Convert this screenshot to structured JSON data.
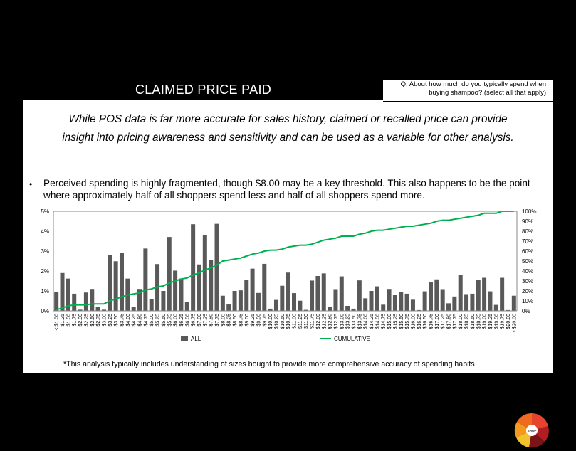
{
  "header": {
    "title": "CLAIMED PRICE PAID",
    "question_line1": "Q:  About how much do you typically spend when",
    "question_line2": "buying shampoo? (select all that apply)"
  },
  "subtitle_line1": "While POS data is far more accurate for sales history, claimed or recalled price can provide",
  "subtitle_line2": "insight into pricing awareness and sensitivity and can be used as a variable for other analysis.",
  "bullet": {
    "marker": "•",
    "line1": "Perceived spending is highly fragmented, though $8.00 may be a key threshold.  This also happens to be the point",
    "line2": "where approximately half of all shoppers spend less and half of all shoppers spend more."
  },
  "footnote": "*This analysis typically includes understanding of sizes bought to provide more comprehensive accuracy of spending habits",
  "logo_text": "SHOP",
  "colors": {
    "bars": "#595959",
    "cumulative": "#00B050",
    "grid": "#D9D9D9",
    "title_bg": "#000000"
  },
  "chart_data": {
    "type": "bar",
    "categories": [
      "< $1.00",
      "$1.25",
      "$1.50",
      "$1.75",
      "$2.00",
      "$2.25",
      "$2.50",
      "$2.75",
      "$3.00",
      "$3.25",
      "$3.50",
      "$3.75",
      "$4.00",
      "$4.25",
      "$4.50",
      "$4.75",
      "$5.00",
      "$5.25",
      "$5.50",
      "$5.75",
      "$6.00",
      "$6.25",
      "$6.50",
      "$6.75",
      "$7.00",
      "$7.25",
      "$7.50",
      "$7.75",
      "$8.00",
      "$8.25",
      "$8.50",
      "$8.75",
      "$9.00",
      "$9.25",
      "$9.50",
      "$9.75",
      "$10.00",
      "$10.25",
      "$10.50",
      "$10.75",
      "$11.00",
      "$11.25",
      "$11.50",
      "$11.75",
      "$12.00",
      "$12.25",
      "$12.50",
      "$12.75",
      "$13.00",
      "$13.25",
      "$13.50",
      "$13.75",
      "$14.00",
      "$14.25",
      "$14.50",
      "$14.75",
      "$15.00",
      "$15.25",
      "$15.50",
      "$15.75",
      "$16.00",
      "$16.25",
      "$16.50",
      "$16.75",
      "$17.00",
      "$17.25",
      "$17.50",
      "$17.75",
      "$18.00",
      "$18.25",
      "$18.50",
      "$18.75",
      "$19.00",
      "$19.25",
      "$19.50",
      "$19.75",
      "$20.00",
      "> $20.00"
    ],
    "series": [
      {
        "name": "ALL",
        "axis": "left",
        "values": [
          0.95,
          1.9,
          1.62,
          0.86,
          0.06,
          0.92,
          1.1,
          0.21,
          0.06,
          2.79,
          2.49,
          2.92,
          1.62,
          0.21,
          1.1,
          3.13,
          0.6,
          2.35,
          1.0,
          3.71,
          2.02,
          1.62,
          0.44,
          4.35,
          2.33,
          3.79,
          2.55,
          4.37,
          0.76,
          0.32,
          1.0,
          1.03,
          1.57,
          2.12,
          0.9,
          2.36,
          0.11,
          0.55,
          1.26,
          1.92,
          0.89,
          0.51,
          0.05,
          1.52,
          1.75,
          1.88,
          0.21,
          1.09,
          1.73,
          0.25,
          0.11,
          1.53,
          0.63,
          1.0,
          1.23,
          0.31,
          1.1,
          0.79,
          0.93,
          0.86,
          0.56,
          0.04,
          0.98,
          1.46,
          1.58,
          1.09,
          0.38,
          0.72,
          1.8,
          0.84,
          0.86,
          1.54,
          1.66,
          0.98,
          0.3,
          1.66,
          0.04,
          0.76
        ]
      },
      {
        "name": "CUMULATIVE",
        "axis": "right",
        "values": [
          1,
          3,
          5,
          6,
          6,
          6,
          7,
          7,
          7,
          10,
          12,
          14,
          16,
          17,
          18,
          21,
          22,
          24,
          25,
          28,
          30,
          32,
          33,
          36,
          38,
          41,
          43,
          46,
          50,
          51,
          52,
          53,
          55,
          57,
          58,
          60,
          61,
          61,
          62,
          64,
          65,
          66,
          66,
          67,
          69,
          71,
          72,
          73,
          75,
          75,
          75,
          77,
          78,
          80,
          81,
          81,
          82,
          83,
          84,
          85,
          85,
          86,
          87,
          88,
          90,
          91,
          91,
          92,
          93,
          94,
          95,
          96,
          98,
          98,
          98,
          100,
          100,
          100
        ]
      }
    ],
    "y_left": {
      "min": 0,
      "max": 5,
      "ticks": [
        "0%",
        "1%",
        "2%",
        "3%",
        "4%",
        "5%"
      ]
    },
    "y_right": {
      "min": 0,
      "max": 100,
      "ticks": [
        "0%",
        "10%",
        "20%",
        "30%",
        "40%",
        "50%",
        "60%",
        "70%",
        "80%",
        "90%",
        "100%"
      ]
    },
    "legend": [
      {
        "name": "ALL"
      },
      {
        "name": "CUMULATIVE"
      }
    ],
    "legend_position": "bottom",
    "grid": false
  }
}
